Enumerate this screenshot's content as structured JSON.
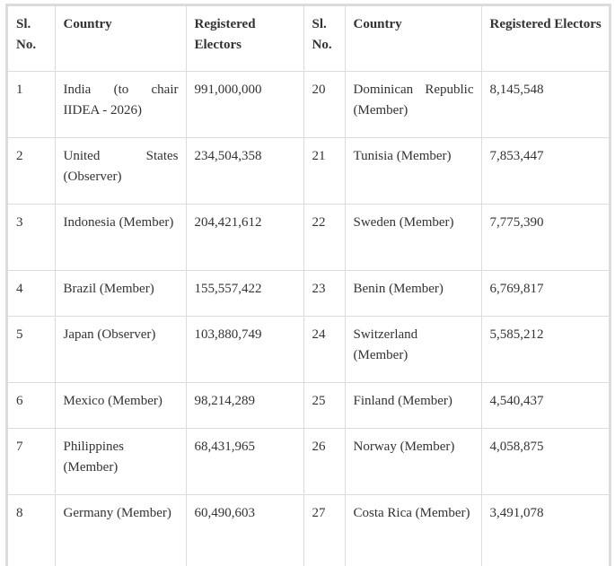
{
  "headers": [
    "Sl. No.",
    "Country",
    "Registered Electors",
    "Sl. No.",
    "Country",
    "Registered Electors"
  ],
  "rows": [
    {
      "l_no": "1",
      "l_country": "India (to chair IIDEA - 2026)",
      "l_electors": "991,000,000",
      "r_no": "20",
      "r_country": "Dominican Republic (Member)",
      "r_electors": "8,145,548"
    },
    {
      "l_no": "2",
      "l_country": "United States (Observer)",
      "l_electors": "234,504,358",
      "r_no": "21",
      "r_country": "Tunisia (Member)",
      "r_electors": "7,853,447"
    },
    {
      "l_no": "3",
      "l_country": "Indonesia (Member)",
      "l_electors": "204,421,612",
      "r_no": "22",
      "r_country": "Sweden (Member)",
      "r_electors": "7,775,390"
    },
    {
      "l_no": "4",
      "l_country": "Brazil (Member)",
      "l_electors": "155,557,422",
      "r_no": "23",
      "r_country": "Benin (Member)",
      "r_electors": "6,769,817"
    },
    {
      "l_no": "5",
      "l_country": "Japan (Observer)",
      "l_electors": "103,880,749",
      "r_no": "24",
      "r_country": "Switzerland (Member)",
      "r_electors": "5,585,212"
    },
    {
      "l_no": "6",
      "l_country": "Mexico (Member)",
      "l_electors": "98,214,289",
      "r_no": "25",
      "r_country": "Finland (Member)",
      "r_electors": "4,540,437"
    },
    {
      "l_no": "7",
      "l_country": "Philippines (Member)",
      "l_electors": "68,431,965",
      "r_no": "26",
      "r_country": "Norway (Member)",
      "r_electors": "4,058,875"
    },
    {
      "l_no": "8",
      "l_country": "Germany (Member)",
      "l_electors": "60,490,603",
      "r_no": "27",
      "r_country": "Costa Rica (Member)",
      "r_electors": "3,491,078"
    }
  ]
}
